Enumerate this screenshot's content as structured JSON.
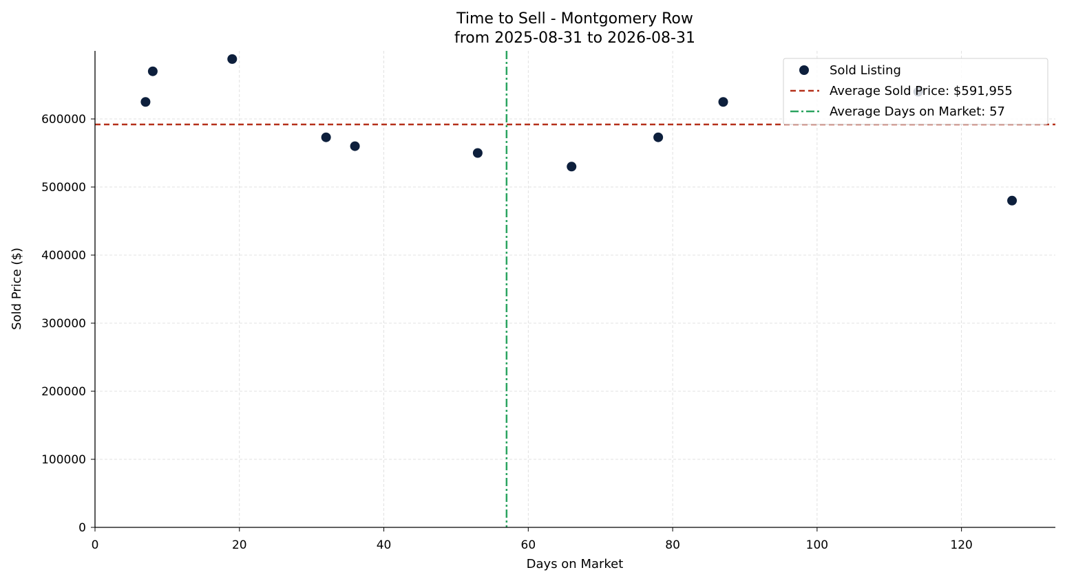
{
  "chart_data": {
    "type": "scatter",
    "title": "Time to Sell - Montgomery Row",
    "subtitle": "from 2025-08-31 to 2026-08-31",
    "xlabel": "Days on Market",
    "ylabel": "Sold Price ($)",
    "xlim": [
      0,
      133
    ],
    "ylim": [
      0,
      700000
    ],
    "x_ticks": [
      0,
      20,
      40,
      60,
      80,
      100,
      120
    ],
    "y_ticks": [
      0,
      100000,
      200000,
      300000,
      400000,
      500000,
      600000
    ],
    "grid": true,
    "legend_position": "top-right",
    "series": [
      {
        "name": "Sold Listing",
        "color": "#0d1f3c",
        "points": [
          {
            "x": 7,
            "y": 625000
          },
          {
            "x": 8,
            "y": 670000
          },
          {
            "x": 19,
            "y": 688000
          },
          {
            "x": 32,
            "y": 573000
          },
          {
            "x": 36,
            "y": 560000
          },
          {
            "x": 53,
            "y": 550000
          },
          {
            "x": 66,
            "y": 530000
          },
          {
            "x": 78,
            "y": 573000
          },
          {
            "x": 87,
            "y": 625000
          },
          {
            "x": 114,
            "y": 640000
          },
          {
            "x": 127,
            "y": 480000
          }
        ]
      }
    ],
    "reference_lines": {
      "avg_price": {
        "label": "Average Sold Price: $591,955",
        "value": 591955,
        "color": "#b5301a"
      },
      "avg_days": {
        "label": "Average Days on Market: 57",
        "value": 57,
        "color": "#2aa35f"
      }
    }
  }
}
